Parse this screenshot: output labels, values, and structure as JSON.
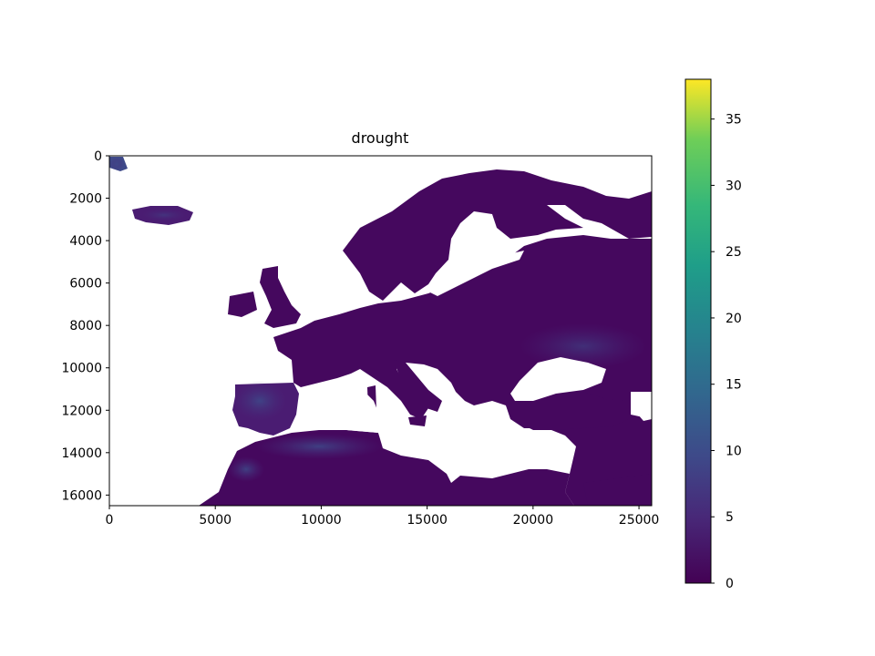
{
  "chart_data": {
    "type": "heatmap",
    "title": "drought",
    "xlabel": "",
    "ylabel": "",
    "xlim": [
      0,
      25600
    ],
    "ylim": [
      16500,
      0
    ],
    "x_ticks": [
      0,
      5000,
      10000,
      15000,
      20000,
      25000
    ],
    "y_ticks": [
      0,
      2000,
      4000,
      6000,
      8000,
      10000,
      12000,
      14000,
      16000
    ],
    "colorbar": {
      "colormap": "viridis",
      "range": [
        0,
        38
      ],
      "ticks": [
        0,
        5,
        10,
        15,
        20,
        25,
        30,
        35
      ]
    },
    "notes_visual": "Map of Europe, North Africa and the Middle East; land values mostly 0-3 (dark purple) with higher values (~5-10) in Iberia, North Africa (Atlas), Iceland and the eastern steppe; sea shown as white (no data).",
    "regions": [
      {
        "name": "Iceland",
        "value": 4
      },
      {
        "name": "Iberia",
        "value": 7
      },
      {
        "name": "Atlas / North Africa",
        "value": 6
      },
      {
        "name": "Eastern steppe",
        "value": 4
      },
      {
        "name": "Continental Europe",
        "value": 1
      }
    ]
  }
}
